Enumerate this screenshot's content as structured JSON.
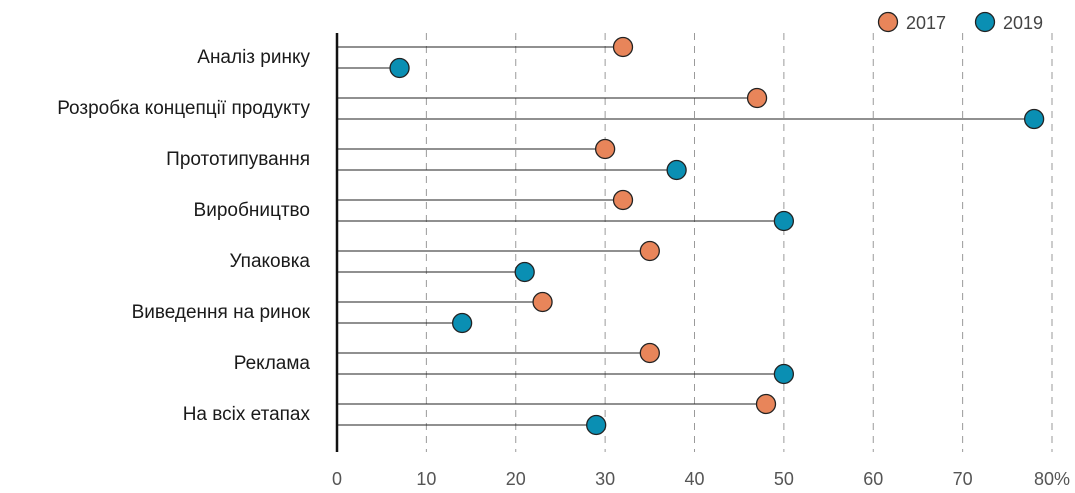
{
  "chart_data": {
    "type": "lollipop",
    "orientation": "horizontal",
    "categories": [
      "Аналіз ринку",
      "Розробка концепції продукту",
      "Прототипування",
      "Виробництво",
      "Упаковка",
      "Виведення на ринок",
      "Реклама",
      "На всіх етапах"
    ],
    "series": [
      {
        "name": "2017",
        "color": "#e8855a",
        "values": [
          32,
          47,
          30,
          32,
          35,
          23,
          35,
          48
        ]
      },
      {
        "name": "2019",
        "color": "#0a8fb3",
        "values": [
          7,
          78,
          38,
          50,
          21,
          14,
          50,
          29
        ]
      }
    ],
    "xlim": [
      0,
      80
    ],
    "xticks": [
      0,
      10,
      20,
      30,
      40,
      50,
      60,
      70,
      80
    ],
    "tick_labels": [
      "0",
      "10",
      "20",
      "30",
      "40",
      "50",
      "60",
      "70",
      "80%"
    ],
    "grid": "vertical-dashed",
    "legend_position": "top-right",
    "title": "",
    "xlabel": "",
    "ylabel": ""
  }
}
